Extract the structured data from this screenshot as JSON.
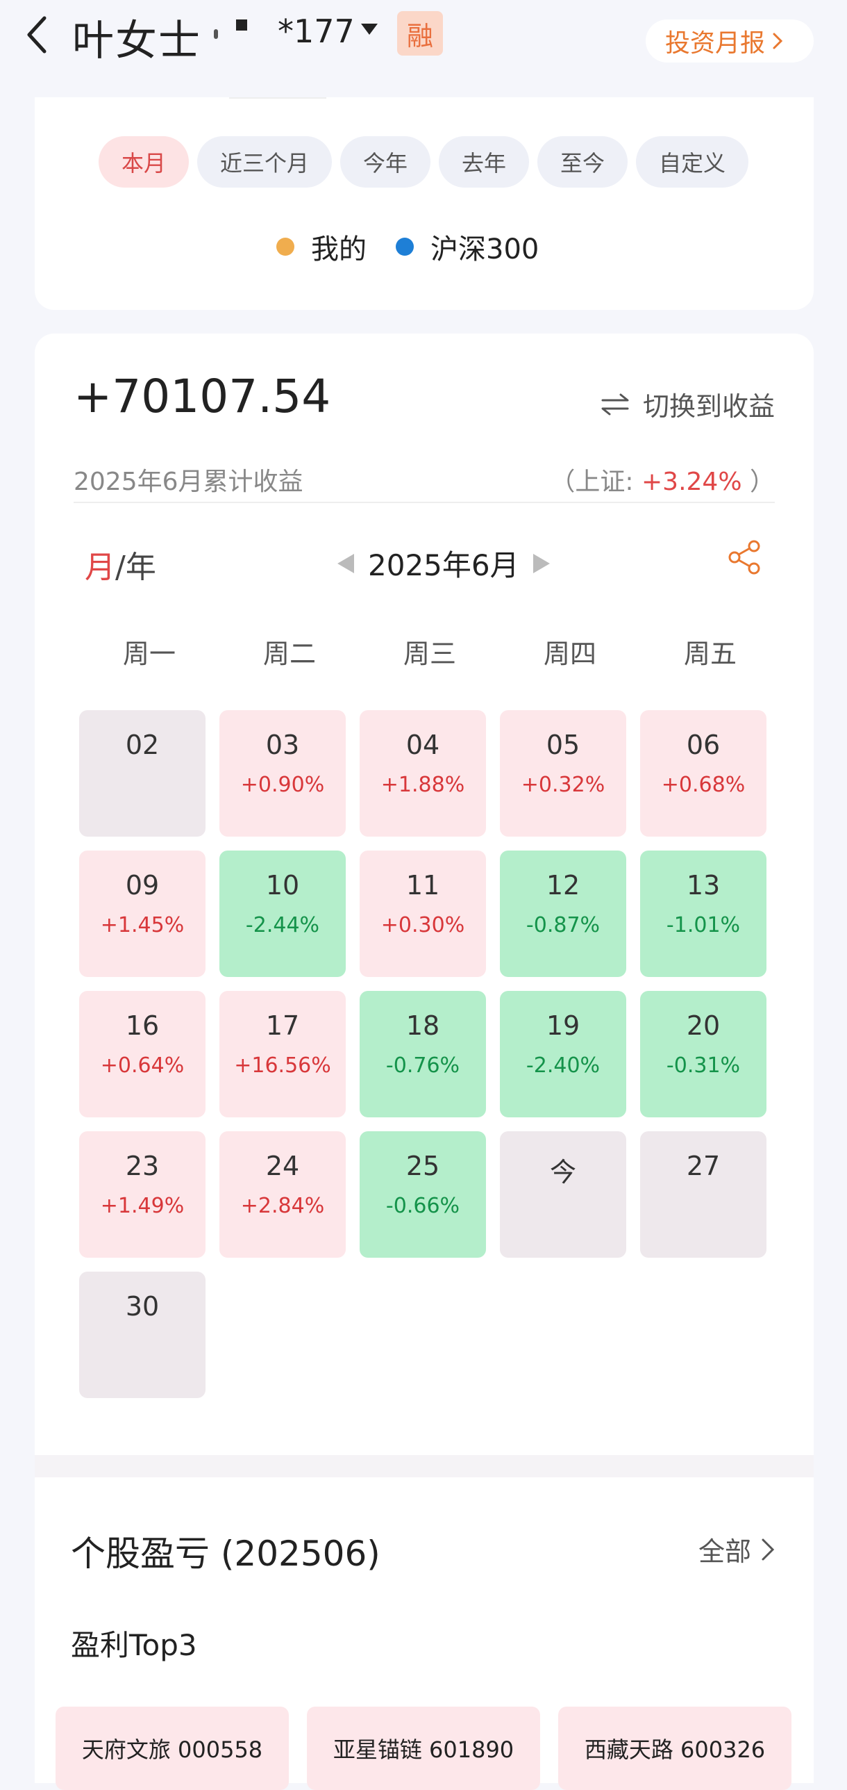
{
  "header": {
    "account_name": "叶女士",
    "account_suffix": "*177",
    "margin_badge": "融",
    "report_button": "投资月报"
  },
  "range_tabs": [
    {
      "label": "本月",
      "active": true
    },
    {
      "label": "近三个月",
      "active": false
    },
    {
      "label": "今年",
      "active": false
    },
    {
      "label": "去年",
      "active": false
    },
    {
      "label": "至今",
      "active": false
    },
    {
      "label": "自定义",
      "active": false
    }
  ],
  "legend": [
    {
      "label": "我的",
      "color": "#f0ad4e"
    },
    {
      "label": "沪深300",
      "color": "#1e7fd6"
    }
  ],
  "summary": {
    "total": "+70107.54",
    "switch_label": "切换到收益",
    "subtitle": "2025年6月累计收益",
    "index_prefix": "（上证:",
    "index_value": "+3.24%",
    "index_suffix": "）"
  },
  "calendar": {
    "toggle_month": "月",
    "toggle_sep_year": "/年",
    "current_month": "2025年6月",
    "weekdays": [
      "周一",
      "周二",
      "周三",
      "周四",
      "周五"
    ],
    "days": [
      {
        "day": "02",
        "change": "",
        "state": "flat"
      },
      {
        "day": "03",
        "change": "+0.90%",
        "state": "up"
      },
      {
        "day": "04",
        "change": "+1.88%",
        "state": "up"
      },
      {
        "day": "05",
        "change": "+0.32%",
        "state": "up"
      },
      {
        "day": "06",
        "change": "+0.68%",
        "state": "up"
      },
      {
        "day": "09",
        "change": "+1.45%",
        "state": "up"
      },
      {
        "day": "10",
        "change": "-2.44%",
        "state": "down"
      },
      {
        "day": "11",
        "change": "+0.30%",
        "state": "up"
      },
      {
        "day": "12",
        "change": "-0.87%",
        "state": "down"
      },
      {
        "day": "13",
        "change": "-1.01%",
        "state": "down"
      },
      {
        "day": "16",
        "change": "+0.64%",
        "state": "up"
      },
      {
        "day": "17",
        "change": "+16.56%",
        "state": "up"
      },
      {
        "day": "18",
        "change": "-0.76%",
        "state": "down"
      },
      {
        "day": "19",
        "change": "-2.40%",
        "state": "down"
      },
      {
        "day": "20",
        "change": "-0.31%",
        "state": "down"
      },
      {
        "day": "23",
        "change": "+1.49%",
        "state": "up"
      },
      {
        "day": "24",
        "change": "+2.84%",
        "state": "up"
      },
      {
        "day": "25",
        "change": "-0.66%",
        "state": "down"
      },
      {
        "day": "今",
        "change": "",
        "state": "flat"
      },
      {
        "day": "27",
        "change": "",
        "state": "flat"
      },
      {
        "day": "30",
        "change": "",
        "state": "flat"
      }
    ]
  },
  "stocks": {
    "title": "个股盈亏 (202506)",
    "all_link": "全部",
    "top3_title": "盈利Top3",
    "items": [
      "天府文旅 000558",
      "亚星锚链 601890",
      "西藏天路 600326"
    ]
  }
}
